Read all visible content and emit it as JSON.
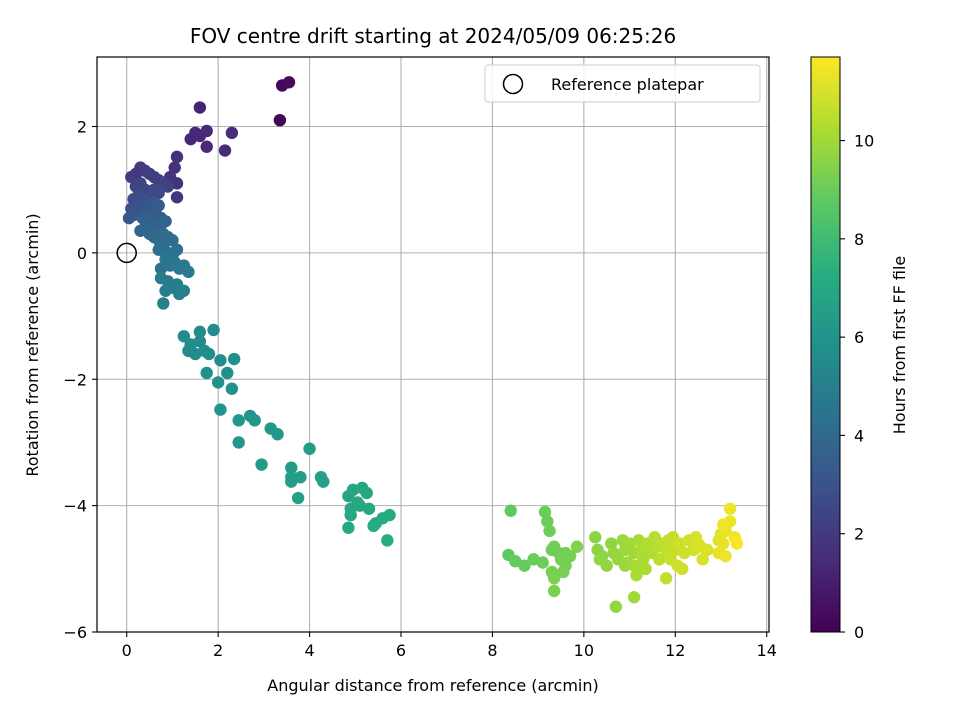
{
  "chart_data": {
    "type": "scatter",
    "title": "FOV centre drift starting at 2024/05/09 06:25:26",
    "xlabel": "Angular distance from reference (arcmin)",
    "ylabel": "Rotation from reference (arcmin)",
    "xlim": [
      -0.65,
      14.05
    ],
    "ylim": [
      -6.0,
      3.1
    ],
    "xticks": [
      0,
      2,
      4,
      6,
      8,
      10,
      12,
      14
    ],
    "yticks": [
      -6,
      -4,
      -2,
      0,
      2
    ],
    "xtick_labels": [
      "0",
      "2",
      "4",
      "6",
      "8",
      "10",
      "12",
      "14"
    ],
    "ytick_labels": [
      "−6",
      "−4",
      "−2",
      "0",
      "2"
    ],
    "grid": true,
    "colormap": "viridis",
    "colorbar": {
      "label": "Hours from first FF file",
      "range": [
        0,
        11.7
      ],
      "ticks": [
        0,
        2,
        4,
        6,
        8,
        10
      ],
      "tick_labels": [
        "0",
        "2",
        "4",
        "6",
        "8",
        "10"
      ]
    },
    "legend": {
      "placement": "top-right",
      "entries": [
        {
          "label": "Reference platepar",
          "marker": "open-circle"
        }
      ]
    },
    "reference_point": {
      "x": 0,
      "y": 0
    },
    "series": [
      {
        "points": [
          [
            3.35,
            2.1,
            0.1
          ],
          [
            3.4,
            2.65,
            0.2
          ],
          [
            3.55,
            2.7,
            0.3
          ],
          [
            1.6,
            2.3,
            1.2
          ],
          [
            2.3,
            1.9,
            1.5
          ],
          [
            2.15,
            1.62,
            1.4
          ],
          [
            1.75,
            1.68,
            1.4
          ],
          [
            1.4,
            1.8,
            1.3
          ],
          [
            1.5,
            1.9,
            1.3
          ],
          [
            1.75,
            1.93,
            1.4
          ],
          [
            1.6,
            1.85,
            1.35
          ],
          [
            1.1,
            1.52,
            1.6
          ],
          [
            1.05,
            1.35,
            1.7
          ],
          [
            1.1,
            1.1,
            1.7
          ],
          [
            1.1,
            0.88,
            1.8
          ],
          [
            0.95,
            1.2,
            1.8
          ],
          [
            0.2,
            1.25,
            1.9
          ],
          [
            0.1,
            1.2,
            2.0
          ],
          [
            0.3,
            1.35,
            2.0
          ],
          [
            0.4,
            1.3,
            2.1
          ],
          [
            0.5,
            1.25,
            2.1
          ],
          [
            0.6,
            1.2,
            2.2
          ],
          [
            0.7,
            1.15,
            2.2
          ],
          [
            0.8,
            1.1,
            2.3
          ],
          [
            0.9,
            1.05,
            2.3
          ],
          [
            0.2,
            1.05,
            2.4
          ],
          [
            0.3,
            1.1,
            2.4
          ],
          [
            0.4,
            1.0,
            2.5
          ],
          [
            0.5,
            0.95,
            2.5
          ],
          [
            0.6,
            1.0,
            2.6
          ],
          [
            0.7,
            0.95,
            2.6
          ],
          [
            0.15,
            0.85,
            2.7
          ],
          [
            0.25,
            0.9,
            2.7
          ],
          [
            0.35,
            0.85,
            2.8
          ],
          [
            0.45,
            0.8,
            2.8
          ],
          [
            0.1,
            0.7,
            2.9
          ],
          [
            0.2,
            0.75,
            2.9
          ],
          [
            0.3,
            0.7,
            3.0
          ],
          [
            0.4,
            0.65,
            3.0
          ],
          [
            0.05,
            0.55,
            3.1
          ],
          [
            0.15,
            0.6,
            3.1
          ],
          [
            0.5,
            0.75,
            3.2
          ],
          [
            0.6,
            0.8,
            3.2
          ],
          [
            0.7,
            0.75,
            3.3
          ],
          [
            0.55,
            0.65,
            3.3
          ],
          [
            0.65,
            0.6,
            3.4
          ],
          [
            0.75,
            0.55,
            3.4
          ],
          [
            0.35,
            0.55,
            3.5
          ],
          [
            0.45,
            0.5,
            3.5
          ],
          [
            0.55,
            0.45,
            3.6
          ],
          [
            0.65,
            0.4,
            3.6
          ],
          [
            0.75,
            0.45,
            3.7
          ],
          [
            0.85,
            0.5,
            3.7
          ],
          [
            0.3,
            0.35,
            3.8
          ],
          [
            0.4,
            0.4,
            3.8
          ],
          [
            0.5,
            0.3,
            3.9
          ],
          [
            0.6,
            0.25,
            3.9
          ],
          [
            0.7,
            0.2,
            4.0
          ],
          [
            0.8,
            0.3,
            4.0
          ],
          [
            0.9,
            0.25,
            4.1
          ],
          [
            1.0,
            0.2,
            4.1
          ],
          [
            0.7,
            0.05,
            4.2
          ],
          [
            0.8,
            0.1,
            4.2
          ],
          [
            0.9,
            0.0,
            4.3
          ],
          [
            1.0,
            -0.05,
            4.3
          ],
          [
            1.1,
            0.05,
            4.4
          ],
          [
            0.75,
            -0.25,
            4.4
          ],
          [
            0.85,
            -0.1,
            4.5
          ],
          [
            0.95,
            -0.2,
            4.5
          ],
          [
            1.05,
            -0.15,
            4.6
          ],
          [
            1.15,
            -0.25,
            4.6
          ],
          [
            1.25,
            -0.2,
            4.7
          ],
          [
            1.35,
            -0.3,
            4.7
          ],
          [
            0.75,
            -0.4,
            4.8
          ],
          [
            0.9,
            -0.45,
            4.8
          ],
          [
            1.0,
            -0.55,
            4.9
          ],
          [
            1.1,
            -0.5,
            4.9
          ],
          [
            0.85,
            -0.6,
            5.0
          ],
          [
            1.15,
            -0.65,
            5.0
          ],
          [
            0.8,
            -0.8,
            5.1
          ],
          [
            1.25,
            -0.6,
            5.1
          ],
          [
            1.25,
            -1.32,
            5.5
          ],
          [
            1.6,
            -1.25,
            5.5
          ],
          [
            1.9,
            -1.22,
            5.5
          ],
          [
            1.4,
            -1.45,
            5.6
          ],
          [
            1.35,
            -1.55,
            5.6
          ],
          [
            1.5,
            -1.6,
            5.6
          ],
          [
            1.6,
            -1.4,
            5.6
          ],
          [
            1.7,
            -1.55,
            5.7
          ],
          [
            1.8,
            -1.6,
            5.7
          ],
          [
            2.05,
            -1.7,
            5.7
          ],
          [
            2.35,
            -1.68,
            5.8
          ],
          [
            2.2,
            -1.9,
            5.8
          ],
          [
            1.75,
            -1.9,
            5.8
          ],
          [
            2.0,
            -2.05,
            5.9
          ],
          [
            2.3,
            -2.15,
            5.9
          ],
          [
            2.05,
            -2.48,
            6.0
          ],
          [
            2.45,
            -2.65,
            6.1
          ],
          [
            2.7,
            -2.58,
            6.1
          ],
          [
            2.8,
            -2.65,
            6.1
          ],
          [
            3.15,
            -2.78,
            6.2
          ],
          [
            3.3,
            -2.87,
            6.2
          ],
          [
            2.45,
            -3.0,
            6.2
          ],
          [
            2.95,
            -3.35,
            6.3
          ],
          [
            4.0,
            -3.1,
            6.4
          ],
          [
            3.6,
            -3.4,
            6.4
          ],
          [
            3.6,
            -3.55,
            6.5
          ],
          [
            3.6,
            -3.62,
            6.5
          ],
          [
            3.8,
            -3.55,
            6.5
          ],
          [
            3.75,
            -3.88,
            6.6
          ],
          [
            4.25,
            -3.55,
            6.6
          ],
          [
            4.3,
            -3.62,
            6.6
          ],
          [
            4.95,
            -3.75,
            6.8
          ],
          [
            5.15,
            -3.72,
            6.9
          ],
          [
            5.25,
            -3.8,
            6.9
          ],
          [
            4.85,
            -3.85,
            6.8
          ],
          [
            5.05,
            -3.95,
            6.9
          ],
          [
            4.9,
            -4.05,
            7.0
          ],
          [
            5.1,
            -4.0,
            7.0
          ],
          [
            5.3,
            -4.05,
            7.0
          ],
          [
            4.9,
            -4.15,
            7.0
          ],
          [
            5.6,
            -4.2,
            7.1
          ],
          [
            5.75,
            -4.15,
            7.1
          ],
          [
            5.45,
            -4.28,
            7.1
          ],
          [
            5.4,
            -4.32,
            7.1
          ],
          [
            4.85,
            -4.35,
            7.0
          ],
          [
            5.7,
            -4.55,
            7.2
          ],
          [
            8.4,
            -4.08,
            8.8
          ],
          [
            8.35,
            -4.78,
            8.8
          ],
          [
            8.5,
            -4.88,
            8.9
          ],
          [
            8.7,
            -4.95,
            8.9
          ],
          [
            8.9,
            -4.85,
            9.0
          ],
          [
            9.1,
            -4.9,
            9.0
          ],
          [
            9.15,
            -4.1,
            9.0
          ],
          [
            9.2,
            -4.25,
            9.0
          ],
          [
            9.25,
            -4.4,
            9.1
          ],
          [
            9.3,
            -4.7,
            9.1
          ],
          [
            9.35,
            -4.65,
            9.1
          ],
          [
            9.45,
            -4.75,
            9.1
          ],
          [
            9.5,
            -4.85,
            9.2
          ],
          [
            9.6,
            -4.75,
            9.2
          ],
          [
            9.6,
            -4.95,
            9.2
          ],
          [
            9.7,
            -4.8,
            9.2
          ],
          [
            9.3,
            -5.05,
            9.2
          ],
          [
            9.35,
            -5.15,
            9.3
          ],
          [
            9.55,
            -5.05,
            9.3
          ],
          [
            9.35,
            -5.35,
            9.3
          ],
          [
            9.85,
            -4.65,
            9.4
          ],
          [
            10.25,
            -4.5,
            9.6
          ],
          [
            10.3,
            -4.7,
            9.6
          ],
          [
            10.4,
            -4.8,
            9.6
          ],
          [
            10.35,
            -4.85,
            9.7
          ],
          [
            10.6,
            -4.6,
            9.7
          ],
          [
            10.65,
            -4.75,
            9.8
          ],
          [
            10.75,
            -4.85,
            9.8
          ],
          [
            10.85,
            -4.55,
            9.9
          ],
          [
            10.9,
            -4.7,
            9.9
          ],
          [
            10.95,
            -4.9,
            10.0
          ],
          [
            11.0,
            -4.6,
            10.0
          ],
          [
            11.1,
            -4.75,
            10.0
          ],
          [
            11.1,
            -4.95,
            10.1
          ],
          [
            11.2,
            -4.55,
            10.1
          ],
          [
            11.25,
            -4.7,
            10.2
          ],
          [
            11.3,
            -4.85,
            10.2
          ],
          [
            11.35,
            -5.0,
            10.2
          ],
          [
            11.4,
            -4.6,
            10.3
          ],
          [
            11.5,
            -4.75,
            10.3
          ],
          [
            11.55,
            -4.5,
            10.4
          ],
          [
            11.6,
            -4.65,
            10.4
          ],
          [
            11.65,
            -4.85,
            10.5
          ],
          [
            11.7,
            -4.6,
            10.5
          ],
          [
            11.8,
            -4.7,
            10.6
          ],
          [
            11.85,
            -4.55,
            10.6
          ],
          [
            11.9,
            -4.85,
            10.7
          ],
          [
            11.95,
            -4.5,
            10.7
          ],
          [
            12.0,
            -4.7,
            10.7
          ],
          [
            12.05,
            -4.95,
            10.8
          ],
          [
            12.1,
            -4.6,
            10.8
          ],
          [
            12.2,
            -4.75,
            10.8
          ],
          [
            12.3,
            -4.55,
            10.9
          ],
          [
            12.4,
            -4.7,
            10.9
          ],
          [
            12.45,
            -4.5,
            11.0
          ],
          [
            12.55,
            -4.65,
            11.0
          ],
          [
            12.6,
            -4.85,
            11.0
          ],
          [
            11.15,
            -5.1,
            10.2
          ],
          [
            11.8,
            -5.15,
            10.6
          ],
          [
            12.15,
            -5.0,
            10.8
          ],
          [
            10.7,
            -5.6,
            9.8
          ],
          [
            11.1,
            -5.45,
            10.0
          ],
          [
            10.9,
            -4.95,
            9.9
          ],
          [
            10.5,
            -4.95,
            9.7
          ],
          [
            12.95,
            -4.55,
            11.2
          ],
          [
            13.0,
            -4.45,
            11.2
          ],
          [
            13.05,
            -4.6,
            11.3
          ],
          [
            13.1,
            -4.4,
            11.3
          ],
          [
            13.2,
            -4.05,
            11.4
          ],
          [
            13.2,
            -4.25,
            11.4
          ],
          [
            12.95,
            -4.75,
            11.3
          ],
          [
            13.1,
            -4.8,
            11.4
          ],
          [
            13.3,
            -4.5,
            11.5
          ],
          [
            13.35,
            -4.6,
            11.6
          ],
          [
            13.05,
            -4.3,
            11.4
          ],
          [
            12.5,
            -4.6,
            11.0
          ],
          [
            12.7,
            -4.7,
            11.1
          ]
        ]
      }
    ]
  }
}
